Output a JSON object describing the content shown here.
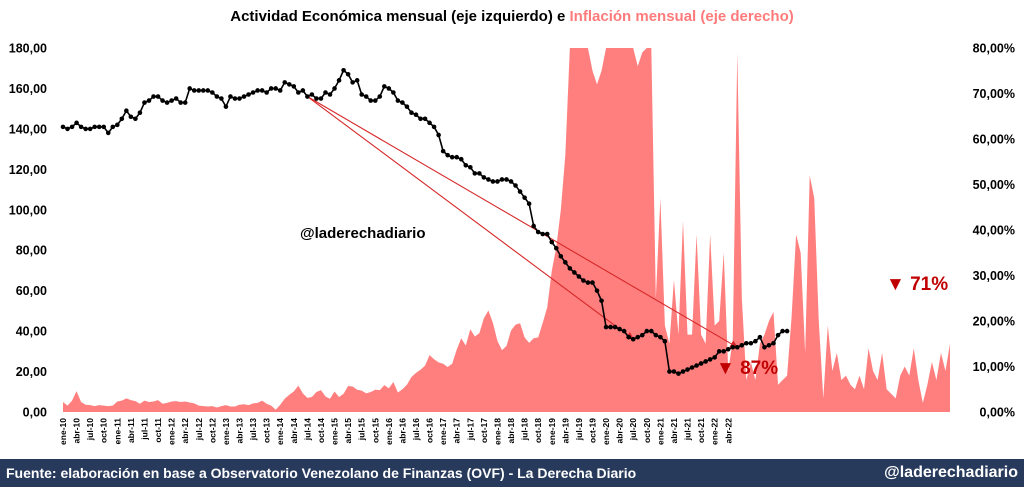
{
  "title": {
    "part1": "Actividad Económica mensual (eje izquierdo) e ",
    "part2": "Inflación mensual (eje derecho)"
  },
  "watermark": "@laderechadiario",
  "annotations": {
    "drop_long": "▼ 87%",
    "drop_short": "▼ 71%"
  },
  "footer": {
    "source": "Fuente: elaboración en base a Observatorio Venezolano de Finanzas (OVF) - La Derecha Diario",
    "handle": "@laderechadiario"
  },
  "colors": {
    "inflation_fill": "#ff7f7f",
    "activity_line": "#000000",
    "trend_line": "#d62728",
    "annotation": "#c00000",
    "footer_bg": "#283a5c"
  },
  "chart_data": {
    "type": "line+area",
    "title": "Actividad Económica mensual (eje izquierdo) e Inflación mensual (eje derecho)",
    "left_axis": {
      "ylim": [
        0,
        180
      ],
      "ticks": [
        "0,00",
        "20,00",
        "40,00",
        "60,00",
        "80,00",
        "100,00",
        "120,00",
        "140,00",
        "160,00",
        "180,00"
      ]
    },
    "right_axis": {
      "ylim": [
        0,
        80
      ],
      "ticks": [
        "0,00%",
        "10,00%",
        "20,00%",
        "30,00%",
        "40,00%",
        "50,00%",
        "60,00%",
        "70,00%",
        "80,00%"
      ]
    },
    "x_tick_labels": [
      "ene-10",
      "abr-10",
      "jul-10",
      "oct-10",
      "ene-11",
      "abr-11",
      "jul-11",
      "oct-11",
      "ene-12",
      "abr-12",
      "jul-12",
      "oct-12",
      "ene-13",
      "abr-13",
      "jul-13",
      "oct-13",
      "ene-14",
      "abr-14",
      "jul-14",
      "oct-14",
      "ene-15",
      "abr-15",
      "jul-15",
      "oct-15",
      "ene-16",
      "abr-16",
      "jul-16",
      "oct-16",
      "ene-17",
      "abr-17",
      "jul-17",
      "oct-17",
      "ene-18",
      "abr-18",
      "jul-18",
      "oct-18",
      "ene-19",
      "abr-19",
      "jul-19",
      "oct-19",
      "ene-20",
      "abr-20",
      "jul-20",
      "oct-20",
      "ene-21",
      "abr-21",
      "jul-21",
      "oct-21",
      "ene-22",
      "abr-22"
    ],
    "x_start": "ene-10",
    "x_step": "1 mes",
    "series": [
      {
        "name": "Actividad Económica mensual",
        "axis": "left",
        "style": "line-markers",
        "values": [
          141,
          140,
          141,
          143,
          141,
          140,
          140,
          141,
          141,
          141,
          138,
          141,
          142,
          145,
          149,
          146,
          145,
          148,
          153,
          154,
          156,
          156,
          154,
          153,
          154,
          155,
          153,
          153,
          160,
          159,
          159,
          159,
          159,
          158,
          156,
          155,
          151,
          156,
          155,
          155,
          156,
          157,
          158,
          159,
          159,
          158,
          160,
          160,
          159,
          163,
          162,
          161,
          158,
          159,
          156,
          157,
          155,
          155,
          158,
          157,
          160,
          164,
          169,
          167,
          163,
          164,
          157,
          156,
          154,
          154,
          156,
          161,
          160,
          158,
          154,
          153,
          151,
          148,
          147,
          145,
          145,
          143,
          141,
          137,
          129,
          127,
          126,
          126,
          125,
          122,
          121,
          118,
          118,
          116,
          115,
          114,
          114,
          115,
          115,
          114,
          112,
          109,
          106,
          103,
          92,
          89,
          88,
          88,
          84,
          81,
          77,
          74,
          71,
          69,
          67,
          65,
          64,
          64,
          60,
          55,
          42,
          42,
          42,
          41,
          40,
          37,
          36,
          37,
          38,
          40,
          40,
          38,
          37,
          35,
          20,
          20,
          19,
          20,
          21,
          22,
          23,
          24,
          25,
          26,
          27,
          30,
          30,
          31,
          32,
          32,
          33,
          34,
          34,
          35,
          37,
          32,
          33,
          34,
          38,
          40,
          40
        ]
      },
      {
        "name": "Inflación mensual",
        "axis": "right",
        "style": "area",
        "values": [
          2.2,
          1.4,
          2.5,
          4.6,
          2.2,
          1.6,
          1.5,
          1.3,
          1.5,
          1.4,
          1.3,
          1.4,
          2.3,
          2.5,
          3.0,
          2.6,
          2.4,
          1.8,
          2.5,
          2.2,
          2.3,
          2.6,
          1.8,
          2.0,
          2.3,
          2.4,
          2.2,
          2.3,
          2.1,
          1.9,
          1.4,
          1.3,
          1.2,
          1.3,
          1.0,
          1.3,
          1.5,
          1.2,
          1.2,
          1.6,
          1.7,
          1.5,
          1.9,
          2.0,
          2.5,
          1.8,
          1.4,
          0.5,
          1.6,
          2.9,
          3.8,
          4.5,
          5.8,
          4.1,
          3.1,
          3.3,
          4.4,
          4.8,
          3.4,
          2.9,
          4.5,
          3.3,
          4.0,
          5.7,
          5.6,
          4.9,
          4.7,
          4.1,
          4.4,
          4.9,
          4.8,
          5.9,
          5.2,
          6.6,
          4.3,
          5.0,
          6.0,
          7.7,
          8.6,
          9.3,
          10.2,
          12.5,
          11.6,
          10.9,
          10.6,
          9.9,
          10.6,
          13.7,
          16.2,
          14.6,
          18.2,
          16.6,
          17.3,
          20.6,
          22.3,
          19.6,
          15.6,
          13.6,
          14.5,
          17.9,
          19.2,
          19.5,
          16.4,
          15.2,
          16.2,
          16.4,
          19.6,
          23.0,
          31.0,
          36.2,
          44.4,
          56.5,
          80,
          80,
          80,
          80,
          80,
          75,
          72,
          75,
          80,
          80,
          80,
          80,
          80,
          80,
          80,
          76,
          79,
          80,
          80,
          25,
          47,
          19,
          15,
          29,
          17,
          42,
          17,
          17,
          39,
          17,
          15,
          39,
          19,
          20,
          35,
          9,
          16,
          79,
          25,
          7,
          11,
          7,
          15,
          17,
          20,
          22,
          6,
          7,
          8,
          21,
          39,
          35,
          13,
          52,
          47,
          20,
          3,
          19,
          9,
          13,
          7,
          8,
          6,
          5,
          8,
          5,
          14,
          9,
          7,
          13,
          5,
          4,
          3,
          8,
          10,
          8,
          14,
          7,
          2,
          6,
          11,
          7,
          13,
          9,
          15
        ]
      }
    ],
    "trend_lines": [
      {
        "from": "jul-14",
        "to": "jul-20",
        "label": "▼ 87%"
      },
      {
        "from": "jul-14",
        "to": "jun-22",
        "label": "▼ 71%"
      }
    ]
  }
}
